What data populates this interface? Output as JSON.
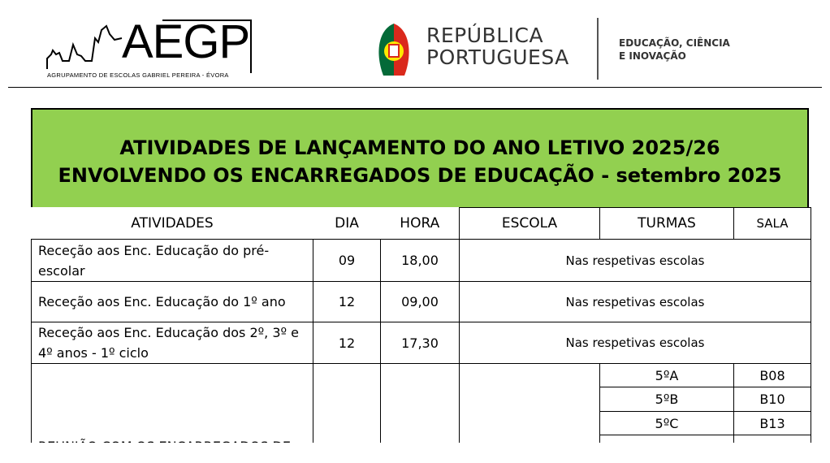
{
  "header": {
    "aegp_logo": "AEGP",
    "aegp_subtitle": "AGRUPAMENTO DE ESCOLAS GABRIEL PEREIRA - ÉVORA",
    "republica_line1": "REPÚBLICA",
    "republica_line2": "PORTUGUESA",
    "ministry_line1": "EDUCAÇÃO, CIÊNCIA",
    "ministry_line2": "E INOVAÇÃO"
  },
  "banner": {
    "line1": "ATIVIDADES DE LANÇAMENTO DO ANO LETIVO 2025/26",
    "line2": "ENVOLVENDO OS ENCARREGADOS DE EDUCAÇÃO - setembro 2025",
    "color": "#92d050"
  },
  "table": {
    "headers": [
      "ATIVIDADES",
      "DIA",
      "HORA",
      "ESCOLA",
      "TURMAS",
      "SALA"
    ],
    "rows": [
      {
        "atividade": "Receção aos Enc. Educação do pré-escolar",
        "dia": "09",
        "hora": "18,00",
        "local": "Nas respetivas escolas"
      },
      {
        "atividade": "Receção aos Enc. Educação do 1º ano",
        "dia": "12",
        "hora": "09,00",
        "local": "Nas respetivas escolas"
      },
      {
        "atividade": "Receção aos Enc. Educação dos 2º, 3º e 4º anos - 1º ciclo",
        "dia": "12",
        "hora": "17,30",
        "local": "Nas respetivas escolas"
      }
    ],
    "meeting": {
      "atividade": "REUNIÃO COM OS ENCARREGADOS DE",
      "turmas": [
        {
          "turma": "5ºA",
          "sala": "B08"
        },
        {
          "turma": "5ºB",
          "sala": "B10"
        },
        {
          "turma": "5ºC",
          "sala": "B13"
        }
      ]
    }
  }
}
